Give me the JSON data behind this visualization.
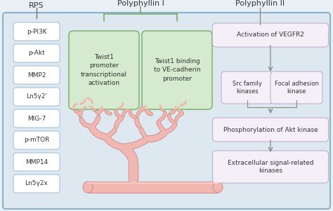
{
  "background_color": "#e8f0f5",
  "main_box_color": "#dde8f0",
  "main_box_edge": "#8ab4cc",
  "header_rps": "RPS",
  "header_poly1": "Polyphyllin I",
  "header_poly2": "Polyphyllin II",
  "rps_labels": [
    "p-PI3K",
    "p-Akt",
    "MMP2",
    "Ln5γ2'",
    "MIG-7",
    "p-mTOR",
    "MMP14",
    "Ln5γ2x"
  ],
  "rps_box_color": "#ffffff",
  "rps_box_edge": "#a8c4d8",
  "poly1_box1_text": "Twist1\npromoter\ntranscriptional\nactivation",
  "poly1_box2_text": "Twist1 binding\nto VE-cadherin\npromoter",
  "poly1_box_color": "#d6eacf",
  "poly1_box_edge": "#80b870",
  "poly2_labels": [
    "Activation of VEGFR2",
    "Src family\nkinases",
    "Focal adhesion\nkinase",
    "Phosphorylation of Akt kinase",
    "Extracellular signal-related\nkinases"
  ],
  "poly2_box_color": "#f5f0f8",
  "poly2_box_edge": "#c0b0d0",
  "vessel_fill": "#f0b8b0",
  "vessel_edge": "#d89090",
  "figsize": [
    4.74,
    3.01
  ],
  "dpi": 100
}
